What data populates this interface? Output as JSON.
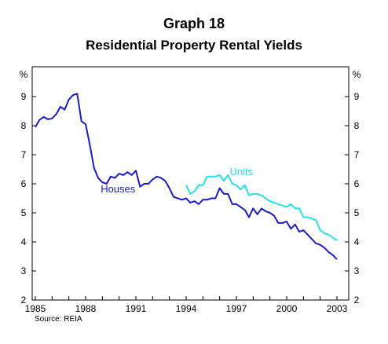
{
  "title": "Graph 18",
  "subtitle": "Residential Property Rental Yields",
  "source": "Source: REIA",
  "chart_data": {
    "type": "line",
    "title": "Graph 18",
    "subtitle": "Residential Property Rental Yields",
    "y_unit_label": "%",
    "ylim": [
      2,
      10
    ],
    "yticks": [
      "2",
      "3",
      "4",
      "5",
      "6",
      "7",
      "8",
      "9"
    ],
    "xlim": [
      1984.9,
      2003.5
    ],
    "xticks": [
      "1985",
      "1988",
      "1991",
      "1994",
      "1997",
      "2000",
      "2003"
    ],
    "grid": false,
    "series": [
      {
        "name": "Houses",
        "color": "#1a1acd",
        "x": [
          1985.0,
          1985.25,
          1985.5,
          1985.75,
          1986.0,
          1986.25,
          1986.5,
          1986.75,
          1987.0,
          1987.25,
          1987.5,
          1987.75,
          1988.0,
          1988.25,
          1988.5,
          1988.75,
          1989.0,
          1989.25,
          1989.5,
          1989.75,
          1990.0,
          1990.25,
          1990.5,
          1990.75,
          1991.0,
          1991.25,
          1991.5,
          1991.75,
          1992.0,
          1992.25,
          1992.5,
          1992.75,
          1993.0,
          1993.25,
          1993.5,
          1993.75,
          1994.0,
          1994.25,
          1994.5,
          1994.75,
          1995.0,
          1995.25,
          1995.5,
          1995.75,
          1996.0,
          1996.25,
          1996.5,
          1996.75,
          1997.0,
          1997.25,
          1997.5,
          1997.75,
          1998.0,
          1998.25,
          1998.5,
          1998.75,
          1999.0,
          1999.25,
          1999.5,
          1999.75,
          2000.0,
          2000.25,
          2000.5,
          2000.75,
          2001.0,
          2001.25,
          2001.5,
          2001.75,
          2002.0,
          2002.25,
          2002.5,
          2002.75,
          2003.0
        ],
        "values": [
          7.95,
          8.2,
          8.3,
          8.22,
          8.25,
          8.4,
          8.65,
          8.55,
          8.9,
          9.05,
          9.1,
          8.15,
          8.05,
          7.35,
          6.55,
          6.2,
          6.05,
          6.0,
          6.25,
          6.2,
          6.35,
          6.3,
          6.4,
          6.3,
          6.45,
          5.9,
          6.0,
          6.0,
          6.15,
          6.25,
          6.2,
          6.1,
          5.85,
          5.55,
          5.5,
          5.45,
          5.5,
          5.35,
          5.4,
          5.3,
          5.45,
          5.45,
          5.5,
          5.5,
          5.85,
          5.65,
          5.65,
          5.3,
          5.3,
          5.2,
          5.1,
          4.85,
          5.15,
          4.95,
          5.15,
          5.05,
          5.0,
          4.9,
          4.65,
          4.65,
          4.7,
          4.45,
          4.6,
          4.35,
          4.4,
          4.25,
          4.1,
          3.95,
          3.9,
          3.8,
          3.65,
          3.55,
          3.4
        ]
      },
      {
        "name": "Units",
        "color": "#22e2e4",
        "x": [
          1994.0,
          1994.25,
          1994.5,
          1994.75,
          1995.0,
          1995.25,
          1995.5,
          1995.75,
          1996.0,
          1996.25,
          1996.5,
          1996.75,
          1997.0,
          1997.25,
          1997.5,
          1997.75,
          1998.0,
          1998.25,
          1998.5,
          1998.75,
          1999.0,
          1999.25,
          1999.5,
          1999.75,
          2000.0,
          2000.25,
          2000.5,
          2000.75,
          2001.0,
          2001.25,
          2001.5,
          2001.75,
          2002.0,
          2002.25,
          2002.5,
          2002.75,
          2003.0
        ],
        "values": [
          5.95,
          5.65,
          5.75,
          5.95,
          5.95,
          6.25,
          6.25,
          6.25,
          6.3,
          6.1,
          6.3,
          6.0,
          5.95,
          5.8,
          5.95,
          5.6,
          5.65,
          5.65,
          5.6,
          5.5,
          5.4,
          5.35,
          5.3,
          5.25,
          5.2,
          5.3,
          5.15,
          5.15,
          4.85,
          4.85,
          4.8,
          4.75,
          4.4,
          4.3,
          4.25,
          4.15,
          4.05
        ]
      }
    ],
    "annotations": [
      {
        "text": "Houses",
        "series": "Houses",
        "x": 1988.9,
        "y": 5.7
      },
      {
        "text": "Units",
        "series": "Units",
        "x": 1996.6,
        "y": 6.3
      }
    ]
  }
}
